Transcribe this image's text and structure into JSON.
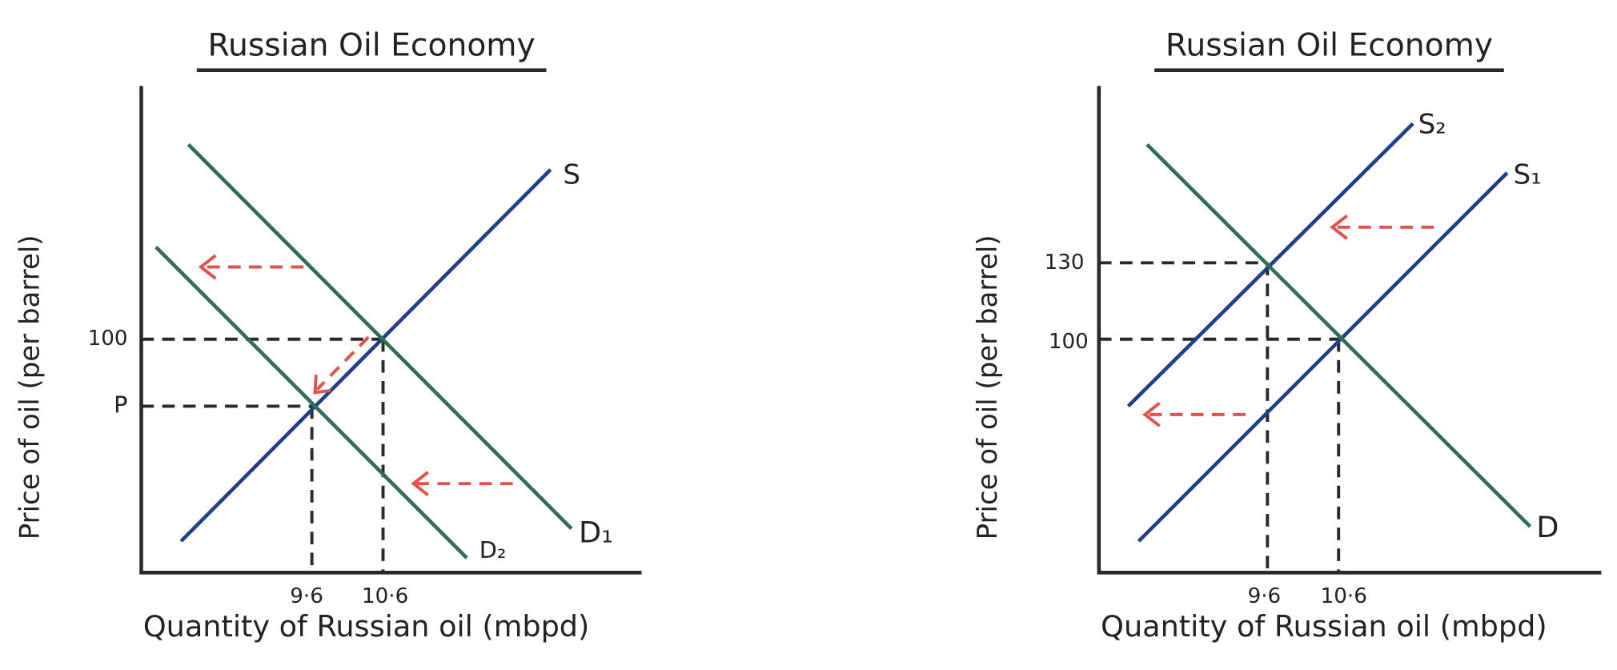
{
  "panels": [
    {
      "title": "Russian Oil Economy",
      "y_axis_label": "Price of oil (per barrel)",
      "x_axis_label": "Quantity of Russian oil (mbpd)",
      "y_ticks": [
        "100",
        "P"
      ],
      "x_ticks": [
        "9·6",
        "10·6"
      ],
      "curves": [
        "S",
        "D₁",
        "D₂"
      ]
    },
    {
      "title": "Russian Oil Economy",
      "y_axis_label": "Price of oil (per barrel)",
      "x_axis_label": "Quantity of Russian oil (mbpd)",
      "y_ticks": [
        "130",
        "100"
      ],
      "x_ticks": [
        "9·6",
        "10·6"
      ],
      "curves": [
        "S₂",
        "S₁",
        "D"
      ]
    }
  ]
}
